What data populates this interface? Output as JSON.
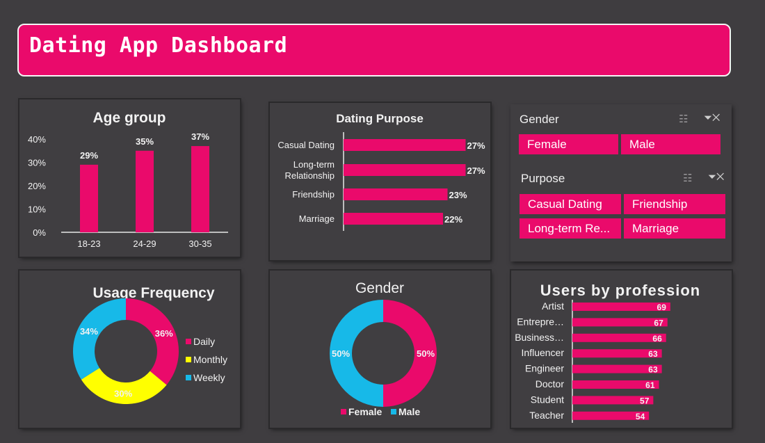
{
  "header": {
    "title": "Dating App Dashboard"
  },
  "colors": {
    "pink": "#ea0a6b",
    "blue": "#17b9e8",
    "yellow": "#ffff00",
    "panel": "#403e41"
  },
  "slicers": {
    "gender": {
      "title": "Gender",
      "items": [
        "Female",
        "Male"
      ],
      "icons": [
        "multi-select-icon",
        "clear-filter-icon"
      ]
    },
    "purpose": {
      "title": "Purpose",
      "items": [
        "Casual Dating",
        "Friendship",
        "Long-term Re...",
        "Marriage"
      ],
      "icons": [
        "multi-select-icon",
        "clear-filter-icon"
      ]
    }
  },
  "chart_data": [
    {
      "id": "age",
      "type": "bar",
      "title": "Age group",
      "categories": [
        "18-23",
        "24-29",
        "30-35"
      ],
      "values": [
        29,
        35,
        37
      ],
      "value_labels": [
        "29%",
        "35%",
        "37%"
      ],
      "yticks": [
        "0%",
        "10%",
        "20%",
        "30%",
        "40%"
      ],
      "ylim": [
        0,
        40
      ],
      "grid": false,
      "legend": "none"
    },
    {
      "id": "purpose",
      "type": "bar",
      "orientation": "horizontal",
      "title": "Dating Purpose",
      "categories": [
        [
          "Casual Dating"
        ],
        [
          "Long-term",
          "Relationship"
        ],
        [
          "Friendship"
        ],
        [
          "Marriage"
        ]
      ],
      "values": [
        27,
        27,
        23,
        22
      ],
      "value_labels": [
        "27%",
        "27%",
        "23%",
        "22%"
      ],
      "xlim": [
        0,
        28
      ],
      "grid": false,
      "legend": "none"
    },
    {
      "id": "usage",
      "type": "pie",
      "variant": "donut",
      "title": "Usage Frequency",
      "labels": [
        "Daily",
        "Monthly",
        "Weekly"
      ],
      "values": [
        36,
        30,
        34
      ],
      "value_labels": [
        "36%",
        "30%",
        "34%"
      ],
      "legend": "right"
    },
    {
      "id": "gender",
      "type": "pie",
      "variant": "donut",
      "title": "Gender",
      "labels": [
        "Female",
        "Male"
      ],
      "values": [
        50,
        50
      ],
      "value_labels": [
        "50%",
        "50%"
      ],
      "legend": "bottom"
    },
    {
      "id": "profession",
      "type": "bar",
      "orientation": "horizontal",
      "title": "Users by profession",
      "categories": [
        "Artist",
        "Entrepre…",
        "Business…",
        "Influencer",
        "Engineer",
        "Doctor",
        "Student",
        "Teacher"
      ],
      "values": [
        69,
        67,
        66,
        63,
        63,
        61,
        57,
        54
      ],
      "xlim": [
        0,
        72
      ],
      "grid": false,
      "legend": "none"
    }
  ]
}
